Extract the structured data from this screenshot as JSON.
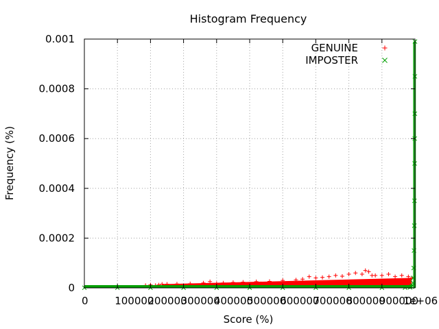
{
  "chart_data": {
    "type": "scatter",
    "title": "Histogram Frequency",
    "xlabel": "Score (%)",
    "ylabel": "Frequency (%)",
    "xlim": [
      0,
      1000000
    ],
    "ylim": [
      0,
      0.001
    ],
    "grid": true,
    "legend_position": "top-right",
    "x_ticks": [
      {
        "value": 0,
        "label": "0"
      },
      {
        "value": 100000,
        "label": "100000"
      },
      {
        "value": 200000,
        "label": "200000"
      },
      {
        "value": 300000,
        "label": "300000"
      },
      {
        "value": 400000,
        "label": "400000"
      },
      {
        "value": 500000,
        "label": "500000"
      },
      {
        "value": 600000,
        "label": "600000"
      },
      {
        "value": 700000,
        "label": "700000"
      },
      {
        "value": 800000,
        "label": "800000"
      },
      {
        "value": 900000,
        "label": "900000"
      },
      {
        "value": 1000000,
        "label": "1e+06"
      }
    ],
    "y_ticks": [
      {
        "value": 0,
        "label": "0"
      },
      {
        "value": 0.0002,
        "label": "0.0002"
      },
      {
        "value": 0.0004,
        "label": "0.0004"
      },
      {
        "value": 0.0006,
        "label": "0.0006"
      },
      {
        "value": 0.0008,
        "label": "0.0008"
      },
      {
        "value": 0.001,
        "label": "0.001"
      }
    ],
    "series": [
      {
        "name": "GENUINE",
        "marker": "plus",
        "color": "#ff0000",
        "x": [
          185000,
          200000,
          215000,
          225000,
          235000,
          250000,
          280000,
          320000,
          360000,
          380000,
          400000,
          420000,
          450000,
          480000,
          520000,
          560000,
          600000,
          640000,
          660000,
          680000,
          700000,
          720000,
          740000,
          760000,
          780000,
          800000,
          820000,
          840000,
          850000,
          860000,
          870000,
          880000,
          900000,
          920000,
          940000,
          960000,
          980000,
          990000
        ],
        "y": [
          1e-05,
          1.2e-05,
          1e-05,
          1.2e-05,
          1.5e-05,
          1.5e-05,
          1.6e-05,
          1.7e-05,
          2e-05,
          2.5e-05,
          1.8e-05,
          2e-05,
          2.2e-05,
          2.3e-05,
          2.5e-05,
          2.6e-05,
          3e-05,
          3.2e-05,
          3.5e-05,
          4.5e-05,
          4e-05,
          4.2e-05,
          4.5e-05,
          5e-05,
          4.7e-05,
          5.5e-05,
          6e-05,
          5.5e-05,
          7e-05,
          6.5e-05,
          5e-05,
          5e-05,
          5e-05,
          5.5e-05,
          4.5e-05,
          5e-05,
          4.5e-05,
          4e-05
        ],
        "band": {
          "x_start": 235000,
          "x_end": 990000,
          "y_start_top": 1.5e-05,
          "y_end_top": 4e-05
        }
      },
      {
        "name": "IMPOSTER",
        "marker": "x",
        "color": "#00a000",
        "x": [
          0,
          100000,
          200000,
          300000,
          400000,
          500000,
          600000,
          700000,
          800000,
          900000,
          970000,
          985000,
          990000,
          992000,
          994000,
          995000,
          996000,
          997000,
          998000,
          998500,
          999000,
          999300,
          999600,
          999800,
          1000000
        ],
        "y": [
          5e-07,
          5e-07,
          5e-07,
          5e-07,
          5e-07,
          5e-07,
          5e-07,
          5e-07,
          5e-07,
          5e-07,
          1e-06,
          2e-06,
          5e-06,
          1e-05,
          2e-05,
          4e-05,
          8e-05,
          0.00015,
          0.00025,
          0.00035,
          0.0005,
          0.0006,
          0.0007,
          0.00085,
          0.00099
        ]
      }
    ]
  }
}
